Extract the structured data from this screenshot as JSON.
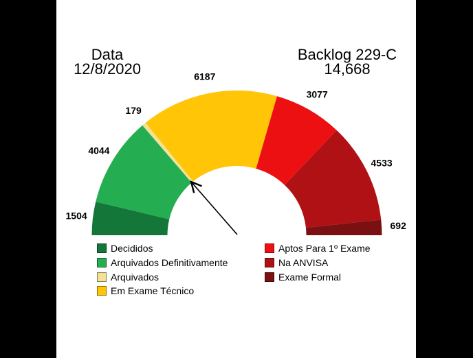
{
  "colors": {
    "page_background": "#000000",
    "panel_background": "#ffffff",
    "text": "#000000",
    "arrow": "#000000"
  },
  "chart_data": {
    "type": "pie",
    "shape": "half-donut-gauge",
    "span_degrees": 180,
    "date_title": "Data",
    "date_value": "12/8/2020",
    "title": "Backlog 229-C",
    "total_label": "14,668",
    "segments": [
      {
        "label": "Decididos",
        "value": 1504,
        "color": "#15763A"
      },
      {
        "label": "Arquivados Definitivamente",
        "value": 4044,
        "color": "#25AE51"
      },
      {
        "label": "Arquivados",
        "value": 179,
        "color": "#F2E296"
      },
      {
        "label": "Em Exame Técnico",
        "value": 6187,
        "color": "#FFC506"
      },
      {
        "label": "Aptos Para 1º Exame",
        "value": 3077,
        "color": "#EC1013"
      },
      {
        "label": "Na ANVISA",
        "value": 4533,
        "color": "#B01115"
      },
      {
        "label": "Exame Formal",
        "value": 692,
        "color": "#7A1012"
      }
    ],
    "legend_columns": [
      [
        0,
        1,
        2,
        3
      ],
      [
        4,
        5,
        6
      ]
    ],
    "value_labels_shown": true,
    "annotation": {
      "type": "arrow",
      "points_to_segment": "Em Exame Técnico"
    }
  }
}
